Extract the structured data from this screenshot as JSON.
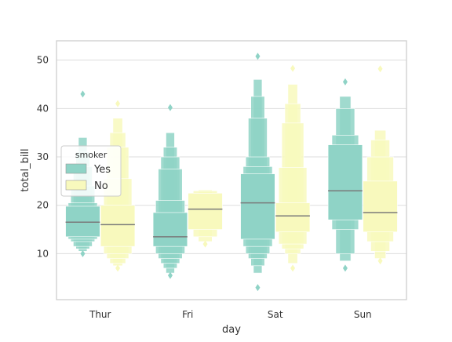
{
  "chart_data": {
    "type": "boxen",
    "xlabel": "day",
    "ylabel": "total_bill",
    "categories": [
      "Thur",
      "Fri",
      "Sat",
      "Sun"
    ],
    "ylim": [
      0.5,
      54
    ],
    "yticks": [
      10,
      20,
      30,
      40,
      50
    ],
    "grid": true,
    "legend": {
      "title": "smoker",
      "placement": "center-left",
      "entries": [
        {
          "label": "Yes",
          "color": "#8fd3c6"
        },
        {
          "label": "No",
          "color": "#f8f9bd"
        }
      ]
    },
    "median_color": "#7a7a7a",
    "series": [
      {
        "name": "Yes",
        "color": "#8fd3c6",
        "groups": [
          {
            "category": "Thur",
            "median": 16.5,
            "boxes": [
              [
                13.5,
                19.8
              ],
              [
                13.0,
                20.5
              ],
              [
                12.5,
                24.0
              ],
              [
                11.5,
                28.0
              ],
              [
                11.0,
                31.0
              ],
              [
                10.5,
                34.0
              ]
            ],
            "outliers": [
              10.0,
              43.0
            ]
          },
          {
            "category": "Fri",
            "median": 13.5,
            "boxes": [
              [
                11.5,
                18.5
              ],
              [
                10.0,
                21.0
              ],
              [
                9.0,
                27.5
              ],
              [
                8.0,
                30.0
              ],
              [
                7.0,
                32.0
              ],
              [
                6.0,
                35.0
              ]
            ],
            "outliers": [
              5.5,
              40.2
            ]
          },
          {
            "category": "Sat",
            "median": 20.5,
            "boxes": [
              [
                13.0,
                26.5
              ],
              [
                11.5,
                28.0
              ],
              [
                10.0,
                30.0
              ],
              [
                9.0,
                38.0
              ],
              [
                7.5,
                42.5
              ],
              [
                6.0,
                46.0
              ]
            ],
            "outliers": [
              3.0,
              50.8
            ]
          },
          {
            "category": "Sun",
            "median": 23.0,
            "boxes": [
              [
                17.0,
                32.5
              ],
              [
                15.0,
                34.5
              ],
              [
                10.0,
                40.0
              ],
              [
                8.5,
                42.5
              ]
            ],
            "outliers": [
              7.0,
              45.5
            ]
          }
        ]
      },
      {
        "name": "No",
        "color": "#f8f9bd",
        "groups": [
          {
            "category": "Thur",
            "median": 16.0,
            "boxes": [
              [
                11.5,
                20.0
              ],
              [
                10.0,
                25.5
              ],
              [
                9.0,
                32.0
              ],
              [
                8.0,
                35.0
              ],
              [
                7.5,
                38.0
              ]
            ],
            "outliers": [
              7.0,
              41.0
            ]
          },
          {
            "category": "Fri",
            "median": 19.2,
            "boxes": [
              [
                15.0,
                22.5
              ],
              [
                13.5,
                23.0
              ],
              [
                12.5,
                23.2
              ]
            ],
            "outliers": [
              12.0
            ]
          },
          {
            "category": "Sat",
            "median": 17.8,
            "boxes": [
              [
                14.5,
                20.5
              ],
              [
                12.0,
                27.8
              ],
              [
                11.0,
                37.0
              ],
              [
                10.0,
                41.0
              ],
              [
                8.0,
                45.0
              ]
            ],
            "outliers": [
              7.0,
              48.3
            ]
          },
          {
            "category": "Sun",
            "median": 18.5,
            "boxes": [
              [
                14.5,
                25.0
              ],
              [
                12.5,
                30.0
              ],
              [
                10.5,
                33.5
              ],
              [
                9.0,
                35.5
              ]
            ],
            "outliers": [
              8.5,
              48.2
            ]
          }
        ]
      }
    ]
  }
}
